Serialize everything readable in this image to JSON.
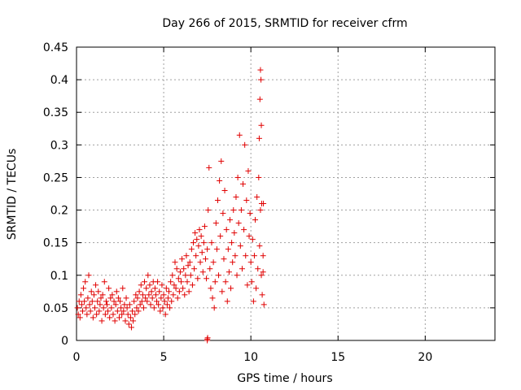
{
  "chart_data": {
    "type": "scatter",
    "title": "Day 266 of 2015, SRMTID for receiver cfrm",
    "xlabel": "GPS time / hours",
    "ylabel": "SRMTID / TECUs",
    "xlim": [
      0,
      24
    ],
    "ylim": [
      0,
      0.45
    ],
    "x_ticks": [
      0,
      5,
      10,
      15,
      20
    ],
    "x_tick_labels": [
      "0",
      "5",
      "10",
      "15",
      "20"
    ],
    "y_ticks": [
      0,
      0.05,
      0.1,
      0.15,
      0.2,
      0.25,
      0.3,
      0.35,
      0.4,
      0.45
    ],
    "y_tick_labels": [
      "0",
      "0.05",
      "0.1",
      "0.15",
      "0.2",
      "0.25",
      "0.3",
      "0.35",
      "0.4",
      "0.45"
    ],
    "grid": true,
    "marker": "+",
    "color": "#e00000",
    "series": [
      {
        "name": "SRMTID",
        "points": [
          [
            0.05,
            0.05
          ],
          [
            0.1,
            0.04
          ],
          [
            0.15,
            0.06
          ],
          [
            0.2,
            0.035
          ],
          [
            0.25,
            0.07
          ],
          [
            0.3,
            0.055
          ],
          [
            0.35,
            0.045
          ],
          [
            0.4,
            0.08
          ],
          [
            0.45,
            0.06
          ],
          [
            0.5,
            0.09
          ],
          [
            0.55,
            0.05
          ],
          [
            0.6,
            0.04
          ],
          [
            0.65,
            0.065
          ],
          [
            0.7,
            0.1
          ],
          [
            0.75,
            0.055
          ],
          [
            0.8,
            0.045
          ],
          [
            0.85,
            0.075
          ],
          [
            0.9,
            0.06
          ],
          [
            0.95,
            0.035
          ],
          [
            1.0,
            0.07
          ],
          [
            1.05,
            0.05
          ],
          [
            1.1,
            0.085
          ],
          [
            1.15,
            0.04
          ],
          [
            1.2,
            0.06
          ],
          [
            1.25,
            0.075
          ],
          [
            1.3,
            0.045
          ],
          [
            1.35,
            0.055
          ],
          [
            1.4,
            0.065
          ],
          [
            1.45,
            0.03
          ],
          [
            1.5,
            0.07
          ],
          [
            1.55,
            0.05
          ],
          [
            1.6,
            0.09
          ],
          [
            1.65,
            0.04
          ],
          [
            1.7,
            0.06
          ],
          [
            1.75,
            0.055
          ],
          [
            1.8,
            0.045
          ],
          [
            1.85,
            0.08
          ],
          [
            1.9,
            0.035
          ],
          [
            1.95,
            0.065
          ],
          [
            2.0,
            0.05
          ],
          [
            2.05,
            0.07
          ],
          [
            2.1,
            0.04
          ],
          [
            2.15,
            0.06
          ],
          [
            2.2,
            0.03
          ],
          [
            2.25,
            0.055
          ],
          [
            2.3,
            0.075
          ],
          [
            2.35,
            0.045
          ],
          [
            2.4,
            0.065
          ],
          [
            2.45,
            0.035
          ],
          [
            2.5,
            0.06
          ],
          [
            2.55,
            0.05
          ],
          [
            2.6,
            0.04
          ],
          [
            2.65,
            0.08
          ],
          [
            2.7,
            0.045
          ],
          [
            2.75,
            0.055
          ],
          [
            2.8,
            0.03
          ],
          [
            2.85,
            0.065
          ],
          [
            2.9,
            0.05
          ],
          [
            2.95,
            0.04
          ],
          [
            3.0,
            0.025
          ],
          [
            3.05,
            0.055
          ],
          [
            3.1,
            0.035
          ],
          [
            3.15,
            0.02
          ],
          [
            3.2,
            0.045
          ],
          [
            3.25,
            0.03
          ],
          [
            3.3,
            0.06
          ],
          [
            3.35,
            0.04
          ],
          [
            3.4,
            0.07
          ],
          [
            3.45,
            0.05
          ],
          [
            3.5,
            0.065
          ],
          [
            3.55,
            0.045
          ],
          [
            3.6,
            0.075
          ],
          [
            3.65,
            0.055
          ],
          [
            3.7,
            0.085
          ],
          [
            3.75,
            0.06
          ],
          [
            3.8,
            0.07
          ],
          [
            3.85,
            0.05
          ],
          [
            3.9,
            0.09
          ],
          [
            3.95,
            0.065
          ],
          [
            4.0,
            0.08
          ],
          [
            4.05,
            0.06
          ],
          [
            4.1,
            0.1
          ],
          [
            4.15,
            0.07
          ],
          [
            4.2,
            0.085
          ],
          [
            4.25,
            0.055
          ],
          [
            4.3,
            0.075
          ],
          [
            4.35,
            0.065
          ],
          [
            4.4,
            0.09
          ],
          [
            4.45,
            0.05
          ],
          [
            4.5,
            0.08
          ],
          [
            4.55,
            0.07
          ],
          [
            4.6,
            0.06
          ],
          [
            4.65,
            0.09
          ],
          [
            4.7,
            0.055
          ],
          [
            4.75,
            0.075
          ],
          [
            4.8,
            0.045
          ],
          [
            4.85,
            0.065
          ],
          [
            4.9,
            0.085
          ],
          [
            4.95,
            0.05
          ],
          [
            5.0,
            0.07
          ],
          [
            5.05,
            0.06
          ],
          [
            5.1,
            0.04
          ],
          [
            5.15,
            0.08
          ],
          [
            5.2,
            0.055
          ],
          [
            5.25,
            0.065
          ],
          [
            5.3,
            0.075
          ],
          [
            5.35,
            0.05
          ],
          [
            5.4,
            0.09
          ],
          [
            5.45,
            0.06
          ],
          [
            5.5,
            0.1
          ],
          [
            5.55,
            0.07
          ],
          [
            5.6,
            0.085
          ],
          [
            5.65,
            0.12
          ],
          [
            5.7,
            0.08
          ],
          [
            5.75,
            0.11
          ],
          [
            5.8,
            0.065
          ],
          [
            5.85,
            0.095
          ],
          [
            5.9,
            0.075
          ],
          [
            5.95,
            0.105
          ],
          [
            6.0,
            0.09
          ],
          [
            6.05,
            0.125
          ],
          [
            6.1,
            0.08
          ],
          [
            6.15,
            0.11
          ],
          [
            6.2,
            0.07
          ],
          [
            6.25,
            0.1
          ],
          [
            6.3,
            0.13
          ],
          [
            6.35,
            0.09
          ],
          [
            6.4,
            0.115
          ],
          [
            6.45,
            0.075
          ],
          [
            6.5,
            0.12
          ],
          [
            6.55,
            0.1
          ],
          [
            6.6,
            0.14
          ],
          [
            6.65,
            0.085
          ],
          [
            6.7,
            0.15
          ],
          [
            6.75,
            0.11
          ],
          [
            6.8,
            0.165
          ],
          [
            6.85,
            0.13
          ],
          [
            6.9,
            0.155
          ],
          [
            6.95,
            0.095
          ],
          [
            7.0,
            0.145
          ],
          [
            7.05,
            0.17
          ],
          [
            7.1,
            0.12
          ],
          [
            7.15,
            0.16
          ],
          [
            7.2,
            0.135
          ],
          [
            7.25,
            0.105
          ],
          [
            7.3,
            0.15
          ],
          [
            7.35,
            0.175
          ],
          [
            7.4,
            0.125
          ],
          [
            7.45,
            0.095
          ],
          [
            7.5,
            0.14
          ],
          [
            7.55,
            0.2
          ],
          [
            7.6,
            0.265
          ],
          [
            7.65,
            0.11
          ],
          [
            7.7,
            0.08
          ],
          [
            7.75,
            0.15
          ],
          [
            7.8,
            0.065
          ],
          [
            7.85,
            0.12
          ],
          [
            7.9,
            0.05
          ],
          [
            7.95,
            0.09
          ],
          [
            8.0,
            0.18
          ],
          [
            8.05,
            0.14
          ],
          [
            8.1,
            0.215
          ],
          [
            8.15,
            0.1
          ],
          [
            8.2,
            0.245
          ],
          [
            8.25,
            0.16
          ],
          [
            8.3,
            0.275
          ],
          [
            8.35,
            0.075
          ],
          [
            8.4,
            0.195
          ],
          [
            8.45,
            0.125
          ],
          [
            8.5,
            0.23
          ],
          [
            8.55,
            0.09
          ],
          [
            8.6,
            0.17
          ],
          [
            8.65,
            0.06
          ],
          [
            8.7,
            0.14
          ],
          [
            8.75,
            0.105
          ],
          [
            8.8,
            0.185
          ],
          [
            8.85,
            0.08
          ],
          [
            8.9,
            0.15
          ],
          [
            8.95,
            0.12
          ],
          [
            9.0,
            0.2
          ],
          [
            9.05,
            0.165
          ],
          [
            9.1,
            0.13
          ],
          [
            9.15,
            0.22
          ],
          [
            9.2,
            0.1
          ],
          [
            9.25,
            0.25
          ],
          [
            9.3,
            0.18
          ],
          [
            9.35,
            0.315
          ],
          [
            9.4,
            0.145
          ],
          [
            9.45,
            0.2
          ],
          [
            9.5,
            0.11
          ],
          [
            9.55,
            0.24
          ],
          [
            9.6,
            0.17
          ],
          [
            9.65,
            0.3
          ],
          [
            9.7,
            0.13
          ],
          [
            9.75,
            0.215
          ],
          [
            9.8,
            0.085
          ],
          [
            9.85,
            0.26
          ],
          [
            9.9,
            0.16
          ],
          [
            9.95,
            0.195
          ],
          [
            10.0,
            0.12
          ],
          [
            10.05,
            0.09
          ],
          [
            10.1,
            0.155
          ],
          [
            10.15,
            0.06
          ],
          [
            10.2,
            0.13
          ],
          [
            10.25,
            0.185
          ],
          [
            10.3,
            0.08
          ],
          [
            10.35,
            0.22
          ],
          [
            10.4,
            0.11
          ],
          [
            10.45,
            0.25
          ],
          [
            10.5,
            0.145
          ],
          [
            10.55,
            0.2
          ],
          [
            10.6,
            0.1
          ],
          [
            10.65,
            0.07
          ],
          [
            10.7,
            0.13
          ],
          [
            10.75,
            0.055
          ],
          [
            10.52,
            0.37
          ],
          [
            10.55,
            0.415
          ],
          [
            10.58,
            0.4
          ],
          [
            10.6,
            0.33
          ],
          [
            10.48,
            0.31
          ],
          [
            7.5,
            0.002
          ],
          [
            7.5,
            0.0
          ],
          [
            7.52,
            0.004
          ],
          [
            10.62,
            0.21
          ],
          [
            10.7,
            0.105
          ],
          [
            10.72,
            0.21
          ]
        ]
      }
    ]
  }
}
